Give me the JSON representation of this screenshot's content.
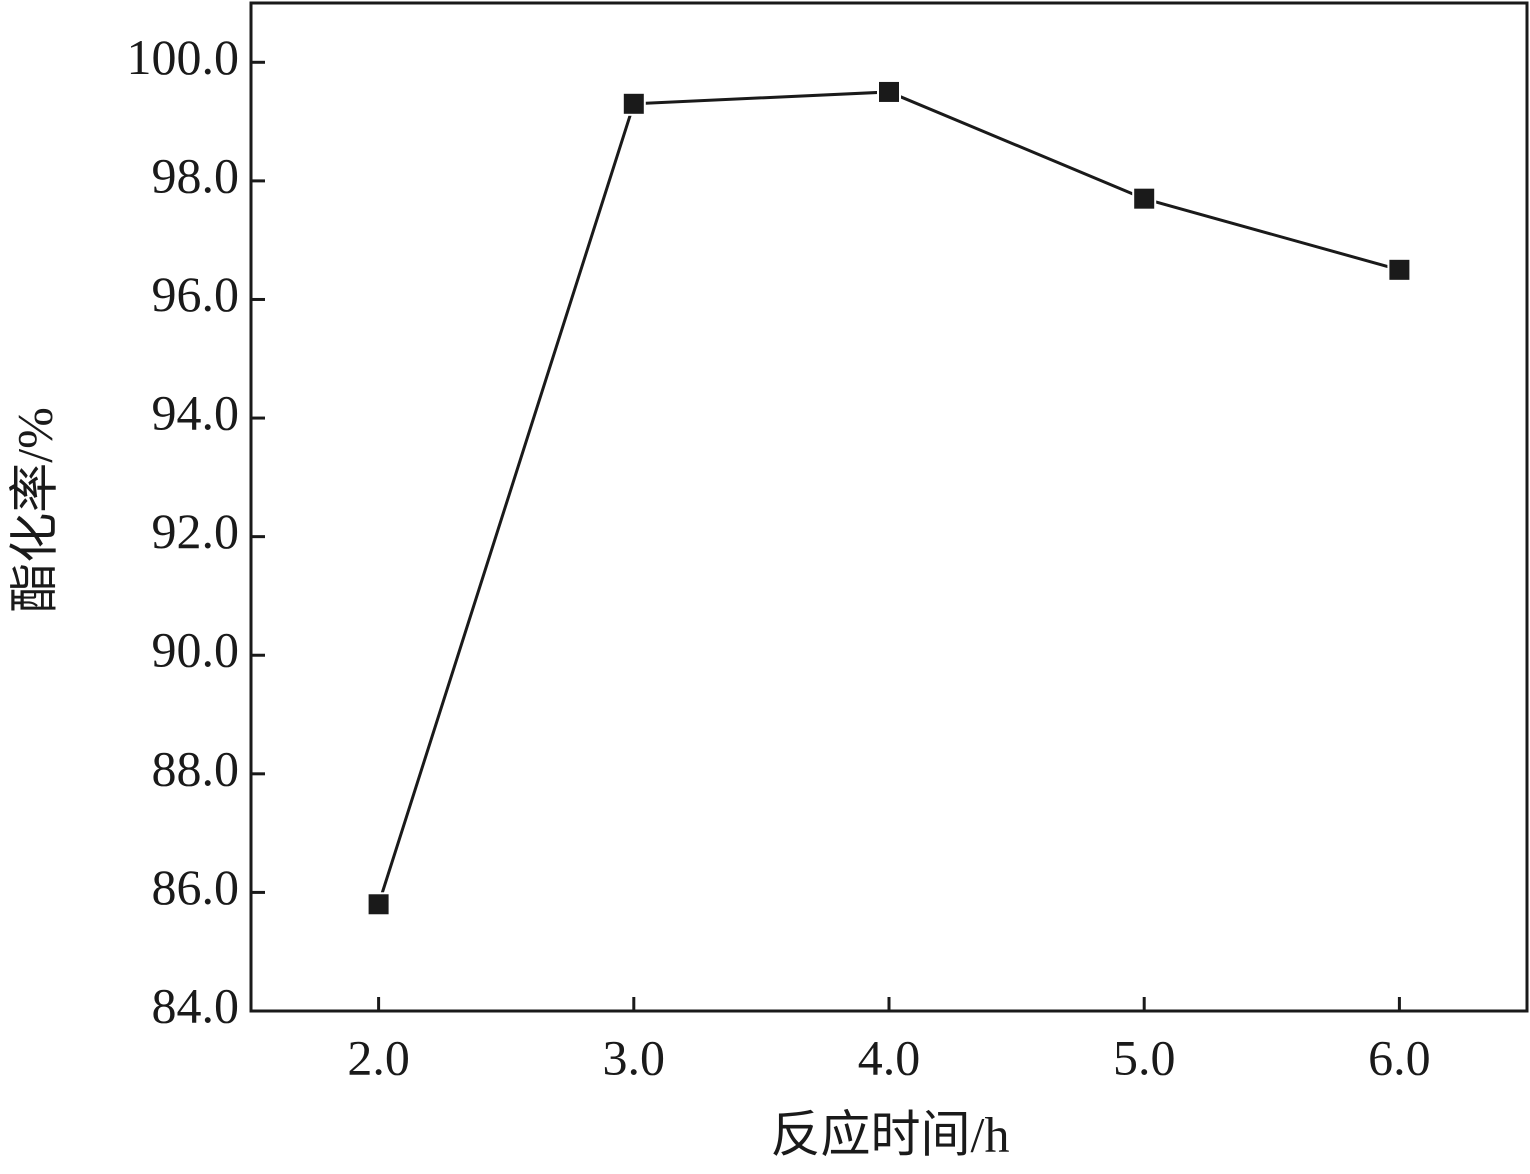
{
  "chart_data": {
    "type": "line",
    "x_label": "反应时间/h",
    "y_label": "酯化率/%",
    "x": [
      2,
      3,
      4,
      5,
      6
    ],
    "series": [
      {
        "color": "#1a1a1a",
        "values": [
          85.8,
          99.3,
          99.5,
          97.7,
          96.5
        ]
      }
    ],
    "xlim": [
      1.5,
      6.5
    ],
    "xticks": [
      {
        "value": 2,
        "label": "2.0"
      },
      {
        "value": 3,
        "label": "3.0"
      },
      {
        "value": 4,
        "label": "4.0"
      },
      {
        "value": 5,
        "label": "5.0"
      },
      {
        "value": 6,
        "label": "6.0"
      }
    ],
    "ylim": [
      84,
      101
    ],
    "yticks": [
      {
        "value": 84,
        "label": "84.0"
      },
      {
        "value": 86,
        "label": "86.0"
      },
      {
        "value": 88,
        "label": "88.0"
      },
      {
        "value": 90,
        "label": "90.0"
      },
      {
        "value": 92,
        "label": "92.0"
      },
      {
        "value": 94,
        "label": "94.0"
      },
      {
        "value": 96,
        "label": "96.0"
      },
      {
        "value": 98,
        "label": "98.0"
      },
      {
        "value": 100,
        "label": "100.0"
      }
    ],
    "grid": false
  }
}
